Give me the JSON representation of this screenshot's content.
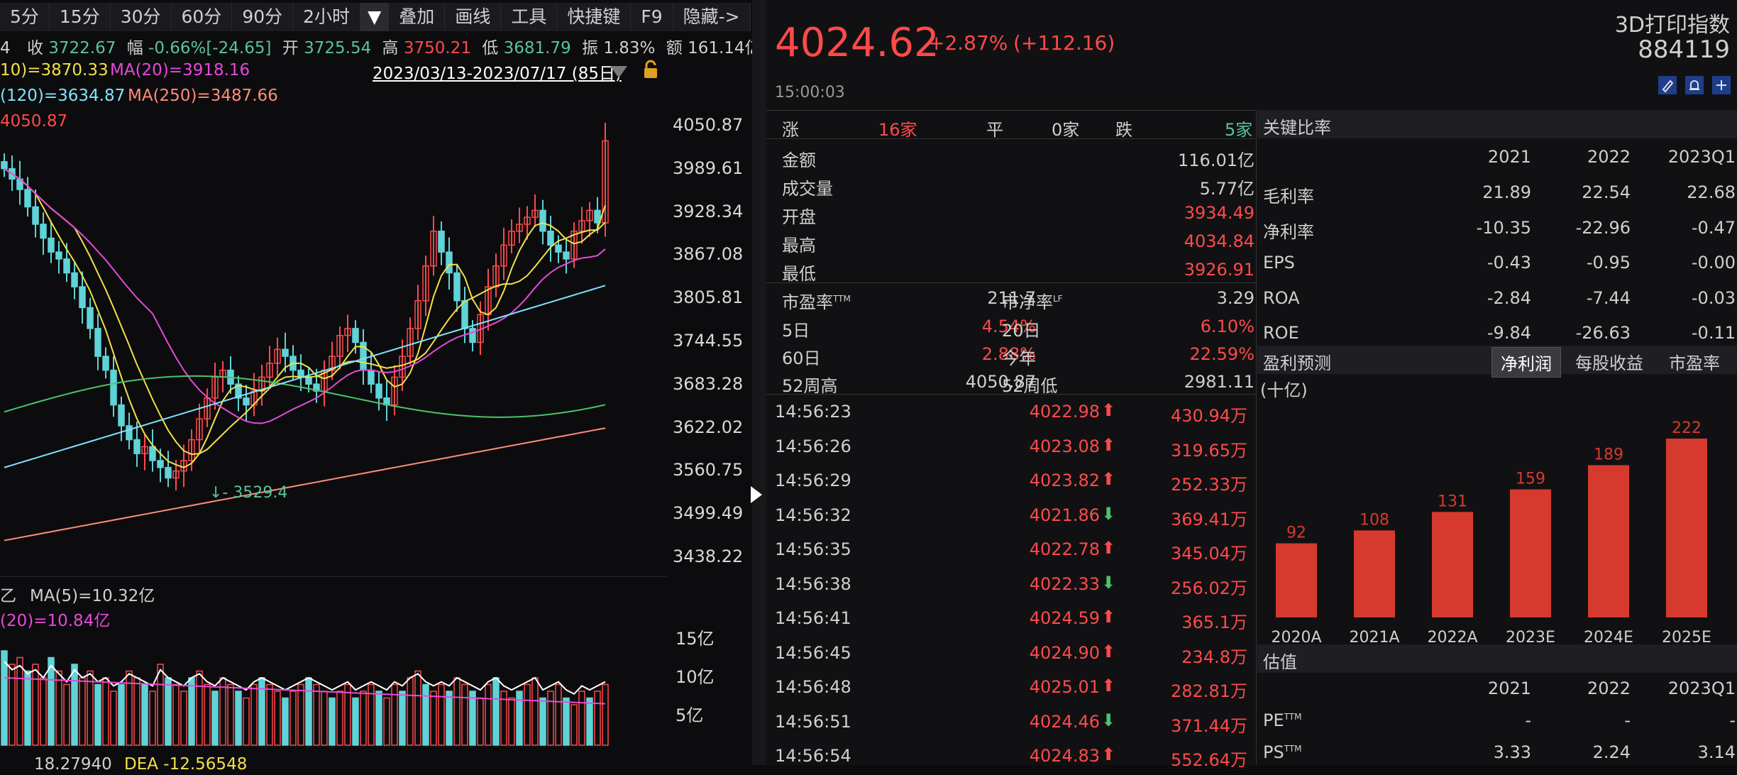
{
  "toolbar": {
    "periods": [
      "5分",
      "15分",
      "30分",
      "60分",
      "90分",
      "2小时"
    ],
    "dropdown": "▼",
    "tools": [
      "叠加",
      "画线",
      "工具",
      "快捷键",
      "F9",
      "隐藏->"
    ]
  },
  "quote_line": {
    "prefix": "4",
    "close_label": "收",
    "close": "3722.67",
    "change_label": "幅",
    "change": "-0.66%[-24.65]",
    "open_label": "开",
    "open": "3725.54",
    "high_label": "高",
    "high": "3750.21",
    "low_label": "低",
    "low": "3681.79",
    "amp_label": "振",
    "amp": "1.83%",
    "amount_label": "额",
    "amount": "161.14亿"
  },
  "ma": {
    "ma10": "10)=3870.33",
    "ma20": "MA(20)=3918.16",
    "ma120": "(120)=3634.87",
    "ma250": "MA(250)=3487.66",
    "high_mark": "4050.87",
    "low_mark": "3529.4"
  },
  "date_range": "2023/03/13-2023/07/17 (85日)",
  "price_axis": [
    "4050.87",
    "3989.61",
    "3928.34",
    "3867.08",
    "3805.81",
    "3744.55",
    "3683.28",
    "3622.02",
    "3560.75",
    "3499.49",
    "3438.22"
  ],
  "volume": {
    "ma5": "MA(5)=10.32亿",
    "prefix": "乙",
    "ma20": "(20)=10.84亿",
    "axis": [
      "15亿",
      "10亿",
      "5亿"
    ],
    "macd": "18.27940",
    "dea": "DEA -12.56548"
  },
  "header": {
    "price": "4024.62",
    "pct": "+2.87%",
    "chg": "(+112.16)",
    "name": "3D打印指数",
    "code": "884119",
    "time": "15:00:03"
  },
  "breadth": {
    "up_label": "涨",
    "up": "16家",
    "flat_label": "平",
    "flat": "0家",
    "down_label": "跌",
    "down": "5家"
  },
  "stats": [
    {
      "label": "金额",
      "value": "116.01亿"
    },
    {
      "label": "成交量",
      "value": "5.77亿"
    },
    {
      "label": "开盘",
      "value": "3934.49"
    },
    {
      "label": "最高",
      "value": "4034.84"
    },
    {
      "label": "最低",
      "value": "3926.91"
    }
  ],
  "valuation": {
    "pe_label": "市盈率",
    "pe_sup": "TTM",
    "pe": "211.7",
    "pb_label": "市净率",
    "pb_sup": "LF",
    "pb": "3.29"
  },
  "returns": [
    {
      "label1": "5日",
      "v1": "4.54%",
      "label2": "20日",
      "v2": "6.10%"
    },
    {
      "label1": "60日",
      "v1": "2.88%",
      "label2": "今年",
      "v2": "22.59%"
    },
    {
      "label1": "52周高",
      "v1": "4050.87",
      "label2": "52周低",
      "v2": "2981.11"
    }
  ],
  "ticks": [
    {
      "time": "14:56:23",
      "price": "4022.98",
      "dir": "up",
      "amt": "430.94万"
    },
    {
      "time": "14:56:26",
      "price": "4023.08",
      "dir": "up",
      "amt": "319.65万"
    },
    {
      "time": "14:56:29",
      "price": "4023.82",
      "dir": "up",
      "amt": "252.33万"
    },
    {
      "time": "14:56:32",
      "price": "4021.86",
      "dir": "down",
      "amt": "369.41万"
    },
    {
      "time": "14:56:35",
      "price": "4022.78",
      "dir": "up",
      "amt": "345.04万"
    },
    {
      "time": "14:56:38",
      "price": "4022.33",
      "dir": "down",
      "amt": "256.02万"
    },
    {
      "time": "14:56:41",
      "price": "4024.59",
      "dir": "up",
      "amt": "365.1万"
    },
    {
      "time": "14:56:45",
      "price": "4024.90",
      "dir": "up",
      "amt": "234.8万"
    },
    {
      "time": "14:56:48",
      "price": "4025.01",
      "dir": "up",
      "amt": "282.81万"
    },
    {
      "time": "14:56:51",
      "price": "4024.46",
      "dir": "down",
      "amt": "371.44万"
    },
    {
      "time": "14:56:54",
      "price": "4024.83",
      "dir": "up",
      "amt": "552.64万"
    }
  ],
  "key_ratios": {
    "title": "关键比率",
    "years": [
      "2021",
      "2022",
      "2023Q1"
    ],
    "rows": [
      {
        "label": "毛利率",
        "vals": [
          "21.89",
          "22.54",
          "22.68"
        ]
      },
      {
        "label": "净利率",
        "vals": [
          "-10.35",
          "-22.96",
          "-0.47"
        ]
      },
      {
        "label": "EPS",
        "vals": [
          "-0.43",
          "-0.95",
          "-0.00"
        ]
      },
      {
        "label": "ROA",
        "vals": [
          "-2.84",
          "-7.44",
          "-0.03"
        ]
      },
      {
        "label": "ROE",
        "vals": [
          "-9.84",
          "-26.63",
          "-0.11"
        ]
      }
    ]
  },
  "forecast": {
    "title": "盈利预测",
    "tabs": [
      "净利润",
      "每股收益",
      "市盈率"
    ],
    "unit": "(十亿)"
  },
  "chart_data": {
    "type": "bar",
    "categories": [
      "2020A",
      "2021A",
      "2022A",
      "2023E",
      "2024E",
      "2025E"
    ],
    "values": [
      92,
      108,
      131,
      159,
      189,
      222
    ],
    "ylim": [
      0,
      222
    ],
    "color": "#d63a2e"
  },
  "estimates": {
    "title": "估值",
    "years": [
      "2021",
      "2022",
      "2023Q1"
    ],
    "rows": [
      {
        "label": "PE",
        "sup": "TTM",
        "vals": [
          "-",
          "-",
          "-"
        ]
      },
      {
        "label": "PS",
        "sup": "TTM",
        "vals": [
          "3.33",
          "2.24",
          "3.14"
        ]
      }
    ]
  }
}
